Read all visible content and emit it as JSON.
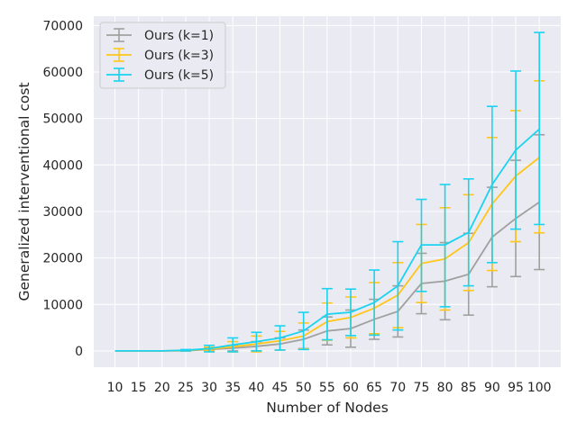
{
  "chart_data": {
    "type": "line",
    "title": "",
    "xlabel": "Number of Nodes",
    "ylabel": "Generalized interventional cost",
    "categories": [
      "10",
      "15",
      "20",
      "25",
      "30",
      "35",
      "40",
      "45",
      "50",
      "55",
      "60",
      "65",
      "70",
      "75",
      "80",
      "85",
      "90",
      "95",
      "100"
    ],
    "ylim": [
      -3500,
      72000
    ],
    "yticks": [
      0,
      10000,
      20000,
      30000,
      40000,
      50000,
      60000,
      70000
    ],
    "grid": true,
    "legend_position": "top-left",
    "series": [
      {
        "name": "Ours (k=1)",
        "color": "#a0a0a0",
        "values": [
          0,
          0,
          0,
          50,
          300,
          600,
          1000,
          1500,
          2500,
          4300,
          4800,
          6800,
          8500,
          14500,
          15000,
          16500,
          24500,
          28500,
          32000
        ],
        "err_low": [
          0,
          0,
          0,
          50,
          300,
          600,
          1000,
          1300,
          2000,
          3000,
          4000,
          4300,
          5500,
          6500,
          8300,
          8800,
          10700,
          12500,
          14500
        ],
        "err_high": [
          0,
          0,
          0,
          50,
          300,
          600,
          1000,
          1300,
          2000,
          3000,
          4000,
          4300,
          5500,
          6500,
          8300,
          8800,
          10700,
          12500,
          14500
        ]
      },
      {
        "name": "Ours (k=3)",
        "color": "#ffc61a",
        "values": [
          0,
          0,
          0,
          100,
          400,
          900,
          1500,
          2200,
          3200,
          6300,
          7200,
          9200,
          12000,
          18800,
          19800,
          23300,
          31600,
          37600,
          41600
        ],
        "err_low": [
          0,
          0,
          0,
          100,
          400,
          1100,
          1700,
          2000,
          2800,
          4000,
          4400,
          5500,
          7000,
          8400,
          11000,
          10300,
          14300,
          14100,
          16200
        ],
        "err_high": [
          0,
          0,
          0,
          100,
          400,
          1100,
          1700,
          2000,
          2800,
          4000,
          4400,
          5500,
          7000,
          8400,
          11000,
          10300,
          14300,
          14100,
          16500
        ]
      },
      {
        "name": "Ours (k=5)",
        "color": "#1ad3f0",
        "values": [
          0,
          0,
          0,
          150,
          500,
          1300,
          2000,
          2800,
          4300,
          7900,
          8300,
          10400,
          14000,
          22800,
          22800,
          25500,
          35800,
          43200,
          47700
        ],
        "err_low": [
          0,
          0,
          0,
          150,
          700,
          1500,
          2000,
          2600,
          4000,
          5500,
          5000,
          7000,
          9500,
          10000,
          13300,
          11500,
          16800,
          17000,
          20500
        ],
        "err_high": [
          0,
          0,
          0,
          150,
          700,
          1500,
          2000,
          2600,
          4000,
          5500,
          5000,
          7000,
          9500,
          9800,
          13000,
          11500,
          16800,
          17000,
          20800
        ]
      }
    ]
  }
}
